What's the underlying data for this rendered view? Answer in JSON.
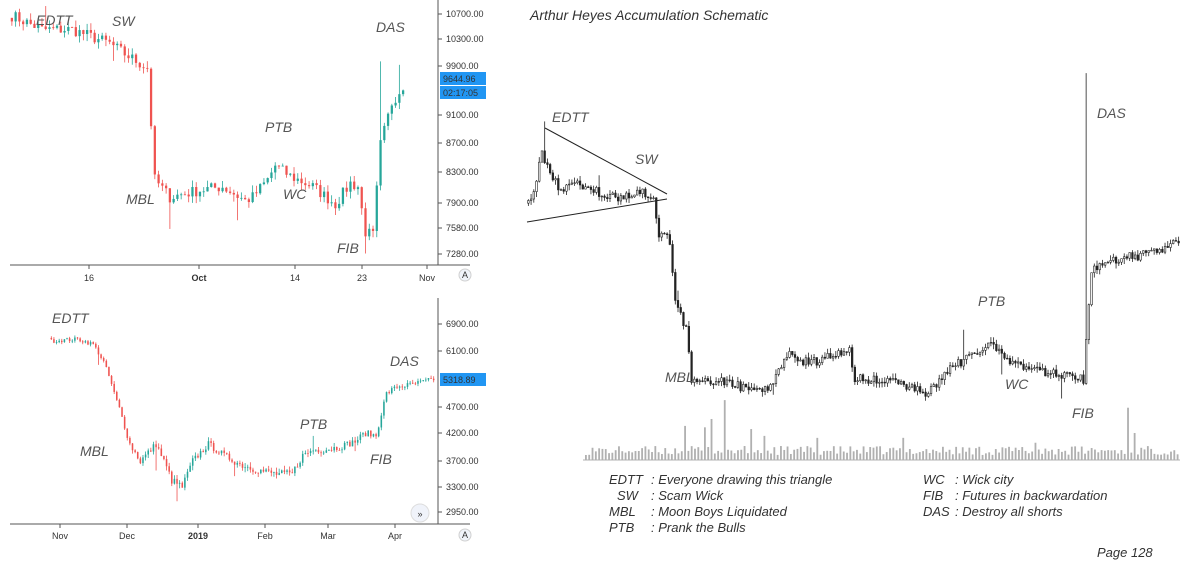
{
  "chart_data": [
    {
      "type": "candlestick",
      "axis_side": "right",
      "y_ticks": [
        "10700.00",
        "10300.00",
        "9900.00",
        "9100.00",
        "8700.00",
        "8300.00",
        "7900.00",
        "7580.00",
        "7280.00"
      ],
      "x_ticks": [
        {
          "label": "16",
          "bold": false
        },
        {
          "label": "Oct",
          "bold": true
        },
        {
          "label": "14",
          "bold": false
        },
        {
          "label": "23",
          "bold": false
        },
        {
          "label": "Nov",
          "bold": false
        }
      ],
      "price_label": "9644.96",
      "timer_label": "02:17:05",
      "axis_button": "A",
      "annotations": [
        "EDTT",
        "SW",
        "MBL",
        "PTB",
        "WC",
        "FIB",
        "DAS"
      ],
      "colors": {
        "up": "#26a69a",
        "down": "#ef5350",
        "badge": "#2196f3"
      }
    },
    {
      "type": "candlestick",
      "axis_side": "right",
      "y_ticks": [
        "6900.00",
        "6100.00",
        "4700.00",
        "4200.00",
        "3700.00",
        "3300.00",
        "2950.00"
      ],
      "x_ticks": [
        {
          "label": "Nov",
          "bold": false
        },
        {
          "label": "Dec",
          "bold": false
        },
        {
          "label": "2019",
          "bold": true
        },
        {
          "label": "Feb",
          "bold": false
        },
        {
          "label": "Mar",
          "bold": false
        },
        {
          "label": "Apr",
          "bold": false
        }
      ],
      "price_label": "5318.89",
      "axis_button": "A",
      "scroll_button": "»",
      "annotations": [
        "EDTT",
        "MBL",
        "PTB",
        "FIB",
        "DAS"
      ],
      "colors": {
        "up": "#26a69a",
        "down": "#ef5350",
        "badge": "#2196f3"
      }
    },
    {
      "type": "candlestick",
      "title": "Arthur Heyes Accumulation Schematic",
      "annotations": [
        "EDTT",
        "SW",
        "MBL",
        "PTB",
        "WC",
        "FIB",
        "DAS"
      ],
      "legend": [
        {
          "abbr": "EDTT",
          "text": ": Everyone drawing this triangle"
        },
        {
          "abbr": "SW",
          "text": ": Scam Wick"
        },
        {
          "abbr": "MBL",
          "text": ": Moon Boys Liquidated"
        },
        {
          "abbr": "PTB",
          "text": ": Prank the Bulls"
        },
        {
          "abbr": "WC",
          "text": ": Wick city"
        },
        {
          "abbr": "FIB",
          "text": ": Futures in backwardation"
        },
        {
          "abbr": "DAS",
          "text": ": Destroy all shorts"
        }
      ],
      "page_label": "Page 128",
      "colors": {
        "candle": "#222222",
        "volume": "#b0b0b0"
      }
    }
  ]
}
